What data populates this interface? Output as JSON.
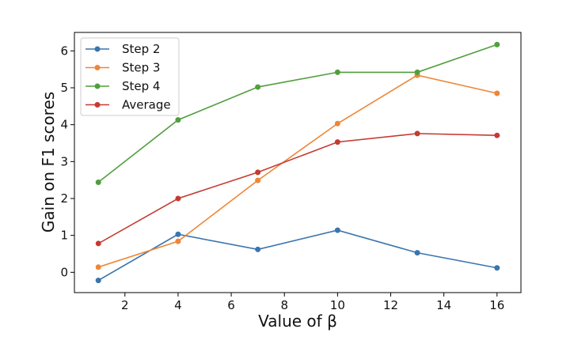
{
  "chart_data": {
    "type": "line",
    "title": "",
    "xlabel": "Value of β",
    "ylabel": "Gain on F1 scores",
    "x": [
      1,
      4,
      7,
      10,
      13,
      16
    ],
    "xlim": [
      0.1,
      16.9
    ],
    "ylim": [
      -0.55,
      6.5
    ],
    "x_ticks": [
      2,
      4,
      6,
      8,
      10,
      12,
      14,
      16
    ],
    "y_ticks": [
      0,
      1,
      2,
      3,
      4,
      5,
      6
    ],
    "grid": false,
    "legend_position": "top-left",
    "series": [
      {
        "name": "Step 2",
        "color": "#3a75ae",
        "values": [
          -0.22,
          1.03,
          0.62,
          1.14,
          0.53,
          0.12
        ]
      },
      {
        "name": "Step 3",
        "color": "#ef8636",
        "values": [
          0.14,
          0.84,
          2.49,
          4.03,
          5.34,
          4.85
        ]
      },
      {
        "name": "Step 4",
        "color": "#519e3e",
        "values": [
          2.44,
          4.13,
          5.02,
          5.42,
          5.42,
          6.17
        ]
      },
      {
        "name": "Average",
        "color": "#c53a32",
        "values": [
          0.78,
          2.0,
          2.71,
          3.53,
          3.76,
          3.71
        ]
      }
    ]
  }
}
